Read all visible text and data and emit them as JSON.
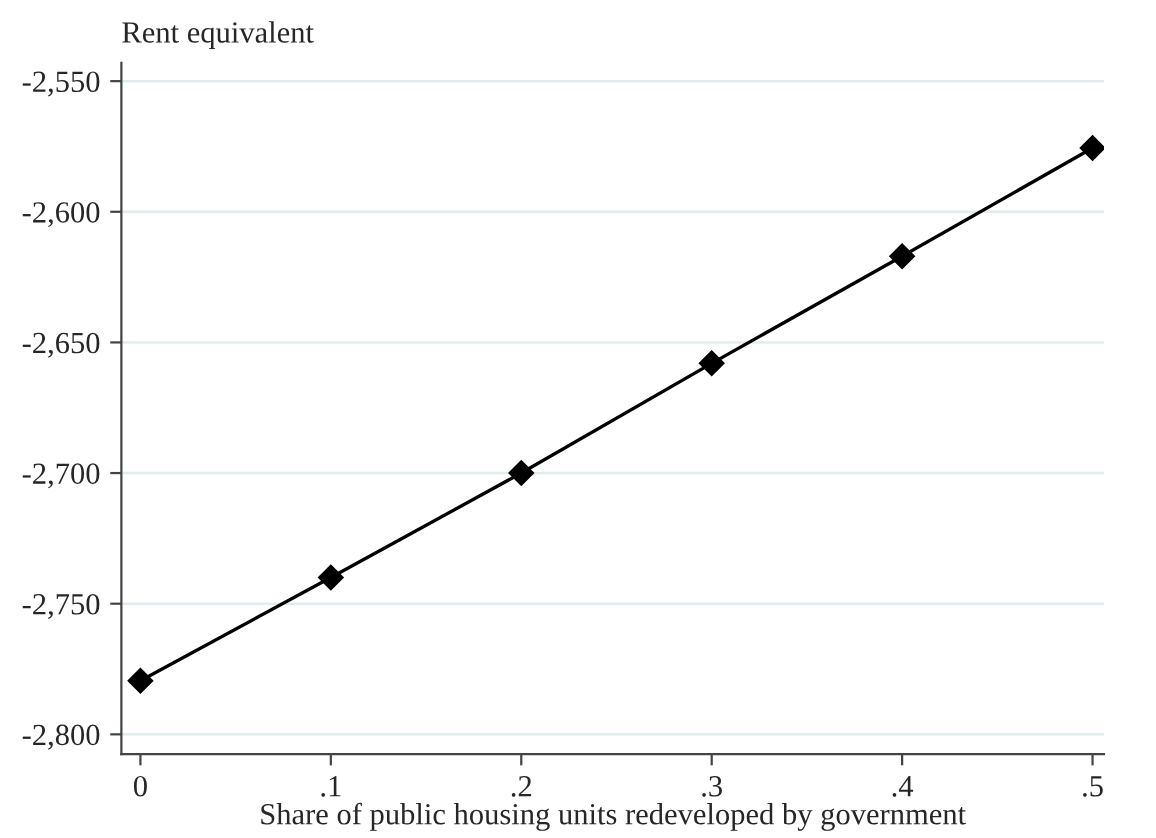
{
  "chart_data": {
    "type": "line",
    "ylabel": "Rent equivalent",
    "xlabel": "Share of public housing units redeveloped by government",
    "x": [
      0,
      0.1,
      0.2,
      0.3,
      0.4,
      0.5
    ],
    "series": [
      {
        "color": "#000000",
        "values": [
          -2779.5,
          -2740,
          -2700,
          -2658,
          -2617,
          -2575.6
        ]
      }
    ],
    "marker": "diamond",
    "line_style": "solid",
    "grid": "y",
    "legend": false,
    "xlim": [
      -0.01,
      0.506
    ],
    "xticks": [
      0,
      {
        "value": 0.1,
        "label": ".1"
      },
      {
        "value": 0.2,
        "label": ".2"
      },
      {
        "value": 0.3,
        "label": ".3"
      },
      {
        "value": 0.4,
        "label": ".4"
      },
      {
        "value": 0.5,
        "label": ".5"
      }
    ],
    "ylim": [
      -2807.6,
      -2543
    ],
    "yticks": [
      {
        "value": -2800,
        "label": "-2,800"
      },
      {
        "value": -2750,
        "label": "-2,750"
      },
      {
        "value": -2700,
        "label": "-2,700"
      },
      {
        "value": -2650,
        "label": "-2,650"
      },
      {
        "value": -2600,
        "label": "-2,600"
      },
      {
        "value": -2550,
        "label": "-2,550"
      }
    ]
  }
}
